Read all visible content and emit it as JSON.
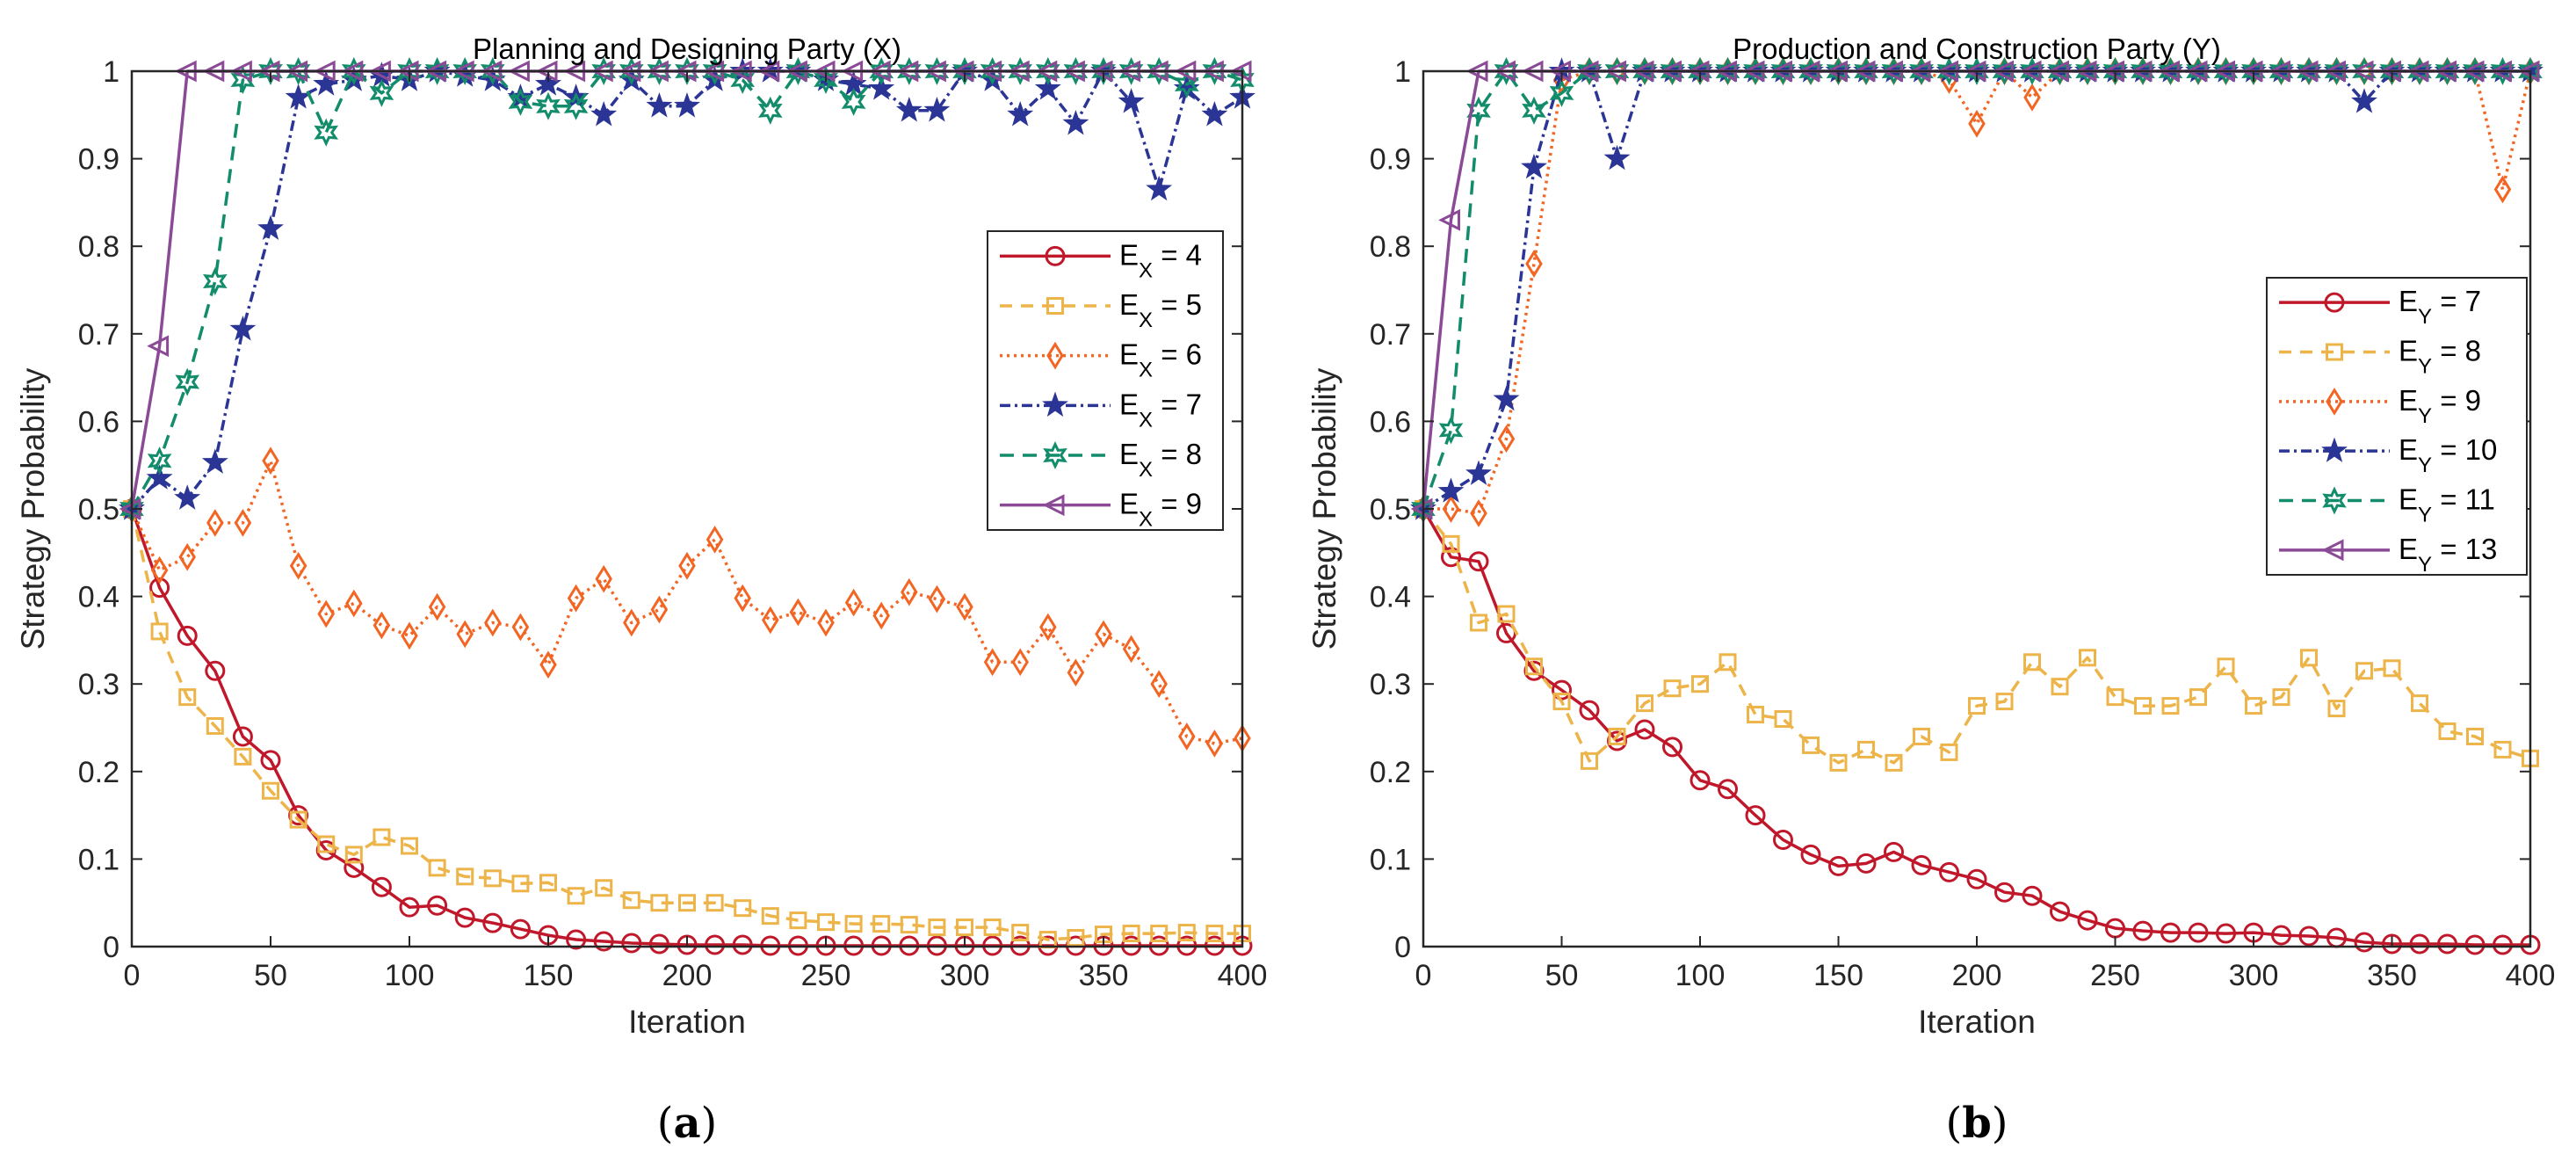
{
  "chart_data": [
    {
      "type": "line",
      "panel": "(a)",
      "panel_letter": "a",
      "title": "Planning and Designing Party (X)",
      "xlabel": "Iteration",
      "ylabel": "Strategy Probability",
      "xlim": [
        0,
        400
      ],
      "ylim": [
        0,
        1
      ],
      "xticks": [
        0,
        50,
        100,
        150,
        200,
        250,
        300,
        350,
        400
      ],
      "yticks": [
        0,
        0.1,
        0.2,
        0.3,
        0.4,
        0.5,
        0.6,
        0.7,
        0.8,
        0.9,
        1
      ],
      "ytick_labels": [
        "0",
        "0.1",
        "0.2",
        "0.3",
        "0.4",
        "0.5",
        "0.6",
        "0.7",
        "0.8",
        "0.9",
        "1"
      ],
      "grid": false,
      "legend_position": "right",
      "x": [
        0,
        10,
        20,
        30,
        40,
        50,
        60,
        70,
        80,
        90,
        100,
        110,
        120,
        130,
        140,
        150,
        160,
        170,
        180,
        190,
        200,
        210,
        220,
        230,
        240,
        250,
        260,
        270,
        280,
        290,
        300,
        310,
        320,
        330,
        340,
        350,
        360,
        370,
        380,
        390,
        400
      ],
      "series": [
        {
          "name": "E_X = 4",
          "label_base": "E",
          "label_sub": "X",
          "label_rest": " = 4",
          "color": "#C0182A",
          "dash": "",
          "marker": "circle",
          "values": [
            0.5,
            0.41,
            0.355,
            0.315,
            0.24,
            0.213,
            0.15,
            0.11,
            0.09,
            0.068,
            0.045,
            0.047,
            0.033,
            0.027,
            0.02,
            0.013,
            0.008,
            0.006,
            0.004,
            0.003,
            0.002,
            0.002,
            0.002,
            0.001,
            0.001,
            0.001,
            0.001,
            0.001,
            0.001,
            0.001,
            0.001,
            0.001,
            0.001,
            0.001,
            0.001,
            0.001,
            0.001,
            0.001,
            0.001,
            0.001,
            0.001
          ]
        },
        {
          "name": "E_X = 5",
          "label_base": "E",
          "label_sub": "X",
          "label_rest": " = 5",
          "color": "#EDB44A",
          "dash": "14,10",
          "marker": "square",
          "values": [
            0.5,
            0.36,
            0.285,
            0.252,
            0.217,
            0.178,
            0.145,
            0.117,
            0.105,
            0.125,
            0.115,
            0.09,
            0.08,
            0.078,
            0.072,
            0.073,
            0.058,
            0.067,
            0.053,
            0.05,
            0.05,
            0.05,
            0.044,
            0.035,
            0.03,
            0.028,
            0.026,
            0.026,
            0.025,
            0.022,
            0.022,
            0.022,
            0.016,
            0.008,
            0.01,
            0.014,
            0.015,
            0.015,
            0.016,
            0.015,
            0.015
          ]
        },
        {
          "name": "E_X = 6",
          "label_base": "E",
          "label_sub": "X",
          "label_rest": " = 6",
          "color": "#F26522",
          "dash": "3,5",
          "marker": "diamond",
          "values": [
            0.5,
            0.43,
            0.445,
            0.484,
            0.484,
            0.555,
            0.435,
            0.38,
            0.392,
            0.367,
            0.355,
            0.388,
            0.357,
            0.37,
            0.365,
            0.322,
            0.398,
            0.42,
            0.37,
            0.385,
            0.435,
            0.465,
            0.398,
            0.373,
            0.382,
            0.37,
            0.393,
            0.378,
            0.405,
            0.397,
            0.388,
            0.325,
            0.325,
            0.365,
            0.313,
            0.357,
            0.34,
            0.3,
            0.24,
            0.232,
            0.238
          ]
        },
        {
          "name": "E_X = 7",
          "label_base": "E",
          "label_sub": "X",
          "label_rest": " = 7",
          "color": "#2B3595",
          "dash": "12,5,3,5",
          "marker": "star",
          "values": [
            0.5,
            0.535,
            0.512,
            0.553,
            0.705,
            0.82,
            0.97,
            0.985,
            0.99,
            0.995,
            0.99,
            1,
            0.995,
            0.99,
            0.97,
            0.985,
            0.97,
            0.95,
            0.99,
            0.96,
            0.96,
            0.99,
            1,
            1,
            1,
            0.99,
            0.985,
            0.98,
            0.955,
            0.955,
            1,
            0.99,
            0.95,
            0.98,
            0.94,
            1,
            0.965,
            0.865,
            0.98,
            0.95,
            0.97
          ]
        },
        {
          "name": "E_X = 8",
          "label_base": "E",
          "label_sub": "X",
          "label_rest": " = 8",
          "color": "#128C6A",
          "dash": "16,10",
          "marker": "hexagram",
          "values": [
            0.5,
            0.555,
            0.645,
            0.76,
            0.99,
            1,
            1,
            0.93,
            1,
            0.975,
            1,
            1,
            1,
            1,
            0.965,
            0.96,
            0.96,
            1,
            1,
            1,
            1,
            1,
            0.99,
            0.955,
            1,
            0.99,
            0.965,
            1,
            1,
            1,
            1,
            1,
            1,
            1,
            1,
            1,
            1,
            1,
            0.985,
            1,
            0.99
          ]
        },
        {
          "name": "E_X = 9",
          "label_base": "E",
          "label_sub": "X",
          "label_rest": " = 9",
          "color": "#8B4A96",
          "dash": "",
          "marker": "triangle-left",
          "values": [
            0.5,
            0.686,
            1,
            1,
            1,
            1,
            1,
            1,
            1,
            1,
            1,
            1,
            1,
            1,
            1,
            1,
            1,
            1,
            1,
            1,
            1,
            1,
            1,
            1,
            1,
            1,
            1,
            1,
            1,
            1,
            1,
            1,
            1,
            1,
            1,
            1,
            1,
            1,
            1,
            1,
            1
          ]
        }
      ]
    },
    {
      "type": "line",
      "panel": "(b)",
      "panel_letter": "b",
      "title": "Production and Construction Party (Y)",
      "xlabel": "Iteration",
      "ylabel": "Strategy Probability",
      "xlim": [
        0,
        400
      ],
      "ylim": [
        0,
        1
      ],
      "xticks": [
        0,
        50,
        100,
        150,
        200,
        250,
        300,
        350,
        400
      ],
      "yticks": [
        0,
        0.1,
        0.2,
        0.3,
        0.4,
        0.5,
        0.6,
        0.7,
        0.8,
        0.9,
        1
      ],
      "ytick_labels": [
        "0",
        "0.1",
        "0.2",
        "0.3",
        "0.4",
        "0.5",
        "0.6",
        "0.7",
        "0.8",
        "0.9",
        "1"
      ],
      "grid": false,
      "legend_position": "right",
      "x": [
        0,
        10,
        20,
        30,
        40,
        50,
        60,
        70,
        80,
        90,
        100,
        110,
        120,
        130,
        140,
        150,
        160,
        170,
        180,
        190,
        200,
        210,
        220,
        230,
        240,
        250,
        260,
        270,
        280,
        290,
        300,
        310,
        320,
        330,
        340,
        350,
        360,
        370,
        380,
        390,
        400
      ],
      "series": [
        {
          "name": "E_Y = 7",
          "label_base": "E",
          "label_sub": "Y",
          "label_rest": " = 7",
          "color": "#C0182A",
          "dash": "",
          "marker": "circle",
          "values": [
            0.5,
            0.445,
            0.44,
            0.358,
            0.315,
            0.293,
            0.27,
            0.235,
            0.248,
            0.228,
            0.19,
            0.18,
            0.15,
            0.122,
            0.105,
            0.092,
            0.095,
            0.108,
            0.093,
            0.085,
            0.077,
            0.062,
            0.058,
            0.04,
            0.03,
            0.021,
            0.018,
            0.016,
            0.016,
            0.015,
            0.016,
            0.013,
            0.012,
            0.01,
            0.005,
            0.003,
            0.003,
            0.003,
            0.002,
            0.002,
            0.002
          ]
        },
        {
          "name": "E_Y = 8",
          "label_base": "E",
          "label_sub": "Y",
          "label_rest": " = 8",
          "color": "#EDB44A",
          "dash": "14,10",
          "marker": "square",
          "values": [
            0.5,
            0.46,
            0.37,
            0.38,
            0.32,
            0.28,
            0.212,
            0.24,
            0.278,
            0.295,
            0.3,
            0.325,
            0.265,
            0.26,
            0.23,
            0.21,
            0.225,
            0.21,
            0.24,
            0.222,
            0.275,
            0.28,
            0.325,
            0.297,
            0.33,
            0.285,
            0.275,
            0.275,
            0.285,
            0.32,
            0.275,
            0.285,
            0.33,
            0.272,
            0.315,
            0.318,
            0.278,
            0.246,
            0.24,
            0.225,
            0.215
          ]
        },
        {
          "name": "E_Y = 9",
          "label_base": "E",
          "label_sub": "Y",
          "label_rest": " = 9",
          "color": "#F26522",
          "dash": "3,5",
          "marker": "diamond",
          "values": [
            0.5,
            0.5,
            0.495,
            0.58,
            0.78,
            0.99,
            1,
            1,
            1,
            1,
            1,
            1,
            1,
            1,
            1,
            1,
            1,
            1,
            1,
            0.99,
            0.94,
            1,
            0.97,
            1,
            1,
            1,
            1,
            1,
            1,
            1,
            1,
            1,
            1,
            1,
            1,
            1,
            1,
            1,
            1,
            0.865,
            1
          ]
        },
        {
          "name": "E_Y = 10",
          "label_base": "E",
          "label_sub": "Y",
          "label_rest": " = 10",
          "color": "#2B3595",
          "dash": "12,5,3,5",
          "marker": "star",
          "values": [
            0.5,
            0.52,
            0.54,
            0.625,
            0.89,
            1,
            1,
            0.9,
            1,
            1,
            1,
            1,
            1,
            1,
            1,
            1,
            1,
            1,
            1,
            1,
            1,
            1,
            1,
            1,
            1,
            1,
            1,
            1,
            1,
            1,
            1,
            1,
            1,
            1,
            0.965,
            1,
            1,
            1,
            1,
            1,
            1
          ]
        },
        {
          "name": "E_Y = 11",
          "label_base": "E",
          "label_sub": "Y",
          "label_rest": " = 11",
          "color": "#128C6A",
          "dash": "16,10",
          "marker": "hexagram",
          "values": [
            0.5,
            0.59,
            0.955,
            1,
            0.955,
            0.975,
            1,
            1,
            1,
            1,
            1,
            1,
            1,
            1,
            1,
            1,
            1,
            1,
            1,
            1,
            1,
            1,
            1,
            1,
            1,
            1,
            1,
            1,
            1,
            1,
            1,
            1,
            1,
            1,
            1,
            1,
            1,
            1,
            1,
            1,
            1
          ]
        },
        {
          "name": "E_Y = 13",
          "label_base": "E",
          "label_sub": "Y",
          "label_rest": " = 13",
          "color": "#8B4A96",
          "dash": "",
          "marker": "triangle-left",
          "values": [
            0.5,
            0.83,
            1,
            1,
            1,
            1,
            1,
            1,
            1,
            1,
            1,
            1,
            1,
            1,
            1,
            1,
            1,
            1,
            1,
            1,
            1,
            1,
            1,
            1,
            1,
            1,
            1,
            1,
            1,
            1,
            1,
            1,
            1,
            1,
            1,
            1,
            1,
            1,
            1,
            1,
            1
          ]
        }
      ]
    }
  ]
}
